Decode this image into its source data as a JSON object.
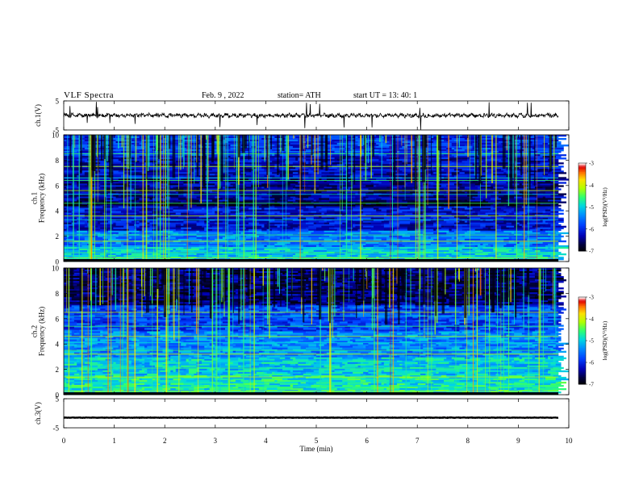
{
  "header": {
    "title": "VLF  Spectra",
    "date": "Feb. 9  , 2022",
    "station": "station= ATH",
    "start": "start  UT  =   13: 40: 1"
  },
  "chart_data": [
    {
      "type": "line",
      "ylabel": "ch.1(V)",
      "ylim": [
        -5,
        5
      ],
      "yticks": [
        "5",
        "-5"
      ],
      "xlim": [
        0,
        10
      ],
      "series_description_values": {
        "baseline": 0,
        "noise_amplitude": 1.0
      }
    },
    {
      "type": "heatmap",
      "ylabel": "ch.1\nFrequency (kHz)",
      "ylim": [
        0,
        10
      ],
      "yticks": [
        "0",
        "2",
        "4",
        "6",
        "8",
        "10"
      ],
      "xlim": [
        0,
        10
      ],
      "colorbar": {
        "label": "log(PSD)(V²/Hz)",
        "ticks": [
          "-3",
          "-4",
          "-5",
          "-6",
          "-7"
        ],
        "range": [
          -7,
          -3
        ]
      }
    },
    {
      "type": "heatmap",
      "ylabel": "ch.2\nFrequency (kHz)",
      "ylim": [
        0,
        10
      ],
      "yticks": [
        "0",
        "2",
        "4",
        "6",
        "8",
        "10"
      ],
      "xlim": [
        0,
        10
      ],
      "colorbar": {
        "label": "log(PSD)(V²/Hz)",
        "ticks": [
          "-3",
          "-4",
          "-5",
          "-6",
          "-7"
        ],
        "range": [
          -7,
          -3
        ]
      }
    },
    {
      "type": "line",
      "ylabel": "ch.3(V)",
      "ylim": [
        -5,
        5
      ],
      "yticks": [
        "5",
        "-5"
      ],
      "xlim": [
        0,
        10
      ],
      "xlabel": "Time  (min)",
      "xticks": [
        "0",
        "1",
        "2",
        "3",
        "4",
        "5",
        "6",
        "7",
        "8",
        "9",
        "10"
      ],
      "series_description_values": {
        "baseline": -1.5,
        "noise_amplitude": 0.1
      }
    }
  ],
  "colors": {
    "colormap": [
      "#000000",
      "#000050",
      "#0000c8",
      "#0050ff",
      "#00a0ff",
      "#00e0d0",
      "#40ff60",
      "#c0ff00",
      "#ffe000",
      "#ff6000",
      "#e00000",
      "#ffffff"
    ]
  }
}
